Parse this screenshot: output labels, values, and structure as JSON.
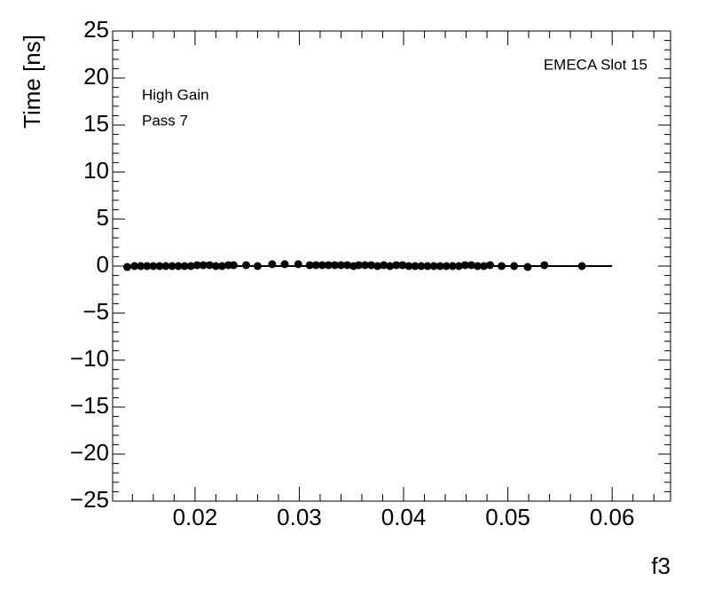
{
  "chart_data": {
    "type": "scatter",
    "y_label": "Time [ns]",
    "x_label": "f3",
    "annotations": [
      "High Gain",
      "Pass 7",
      "EMECA Slot 15"
    ],
    "xlim": [
      0.0121,
      0.0656
    ],
    "ylim": [
      -25,
      25
    ],
    "xticks": [
      0.02,
      0.03,
      0.04,
      0.05,
      0.06
    ],
    "yticks": [
      {
        "value": -25,
        "label": "−25"
      },
      {
        "value": -20,
        "label": "−20"
      },
      {
        "value": -15,
        "label": "−15"
      },
      {
        "value": -10,
        "label": "−10"
      },
      {
        "value": -5,
        "label": "−5"
      },
      0,
      5,
      10,
      15,
      20,
      25
    ],
    "series": [
      {
        "color": "#000000",
        "x": [
          0.0135,
          0.0142,
          0.0148,
          0.0154,
          0.016,
          0.0166,
          0.0172,
          0.0178,
          0.0184,
          0.019,
          0.0196,
          0.0202,
          0.0208,
          0.0214,
          0.022,
          0.0226,
          0.0232,
          0.0237,
          0.0249,
          0.026,
          0.0274,
          0.0286,
          0.0299,
          0.031,
          0.0316,
          0.0322,
          0.0328,
          0.0334,
          0.034,
          0.0346,
          0.0352,
          0.0357,
          0.0363,
          0.0369,
          0.0375,
          0.0381,
          0.0387,
          0.0393,
          0.0399,
          0.0405,
          0.0411,
          0.0417,
          0.0423,
          0.0429,
          0.0435,
          0.0441,
          0.0447,
          0.0453,
          0.0459,
          0.0465,
          0.0471,
          0.0477,
          0.0483,
          0.0494,
          0.0506,
          0.0519,
          0.0535,
          0.0571
        ],
        "values": [
          -0.1,
          0,
          0,
          0,
          0,
          0,
          0,
          0,
          0,
          0,
          0,
          0.1,
          0.1,
          0.1,
          0,
          0,
          0.1,
          0.1,
          0.1,
          0,
          0.2,
          0.2,
          0.2,
          0.1,
          0.1,
          0.1,
          0.1,
          0.1,
          0.1,
          0.1,
          0,
          0.1,
          0.1,
          0.1,
          0,
          0.1,
          0,
          0.1,
          0.1,
          0,
          0,
          0,
          0,
          0,
          0,
          0,
          0,
          0,
          0.1,
          0.1,
          0,
          0,
          0.1,
          0,
          0,
          -0.1,
          0.1,
          0
        ]
      },
      {
        "type": "line",
        "color": "#000000",
        "x": [
          0.0135,
          0.06
        ],
        "values": [
          0,
          0
        ]
      }
    ]
  }
}
